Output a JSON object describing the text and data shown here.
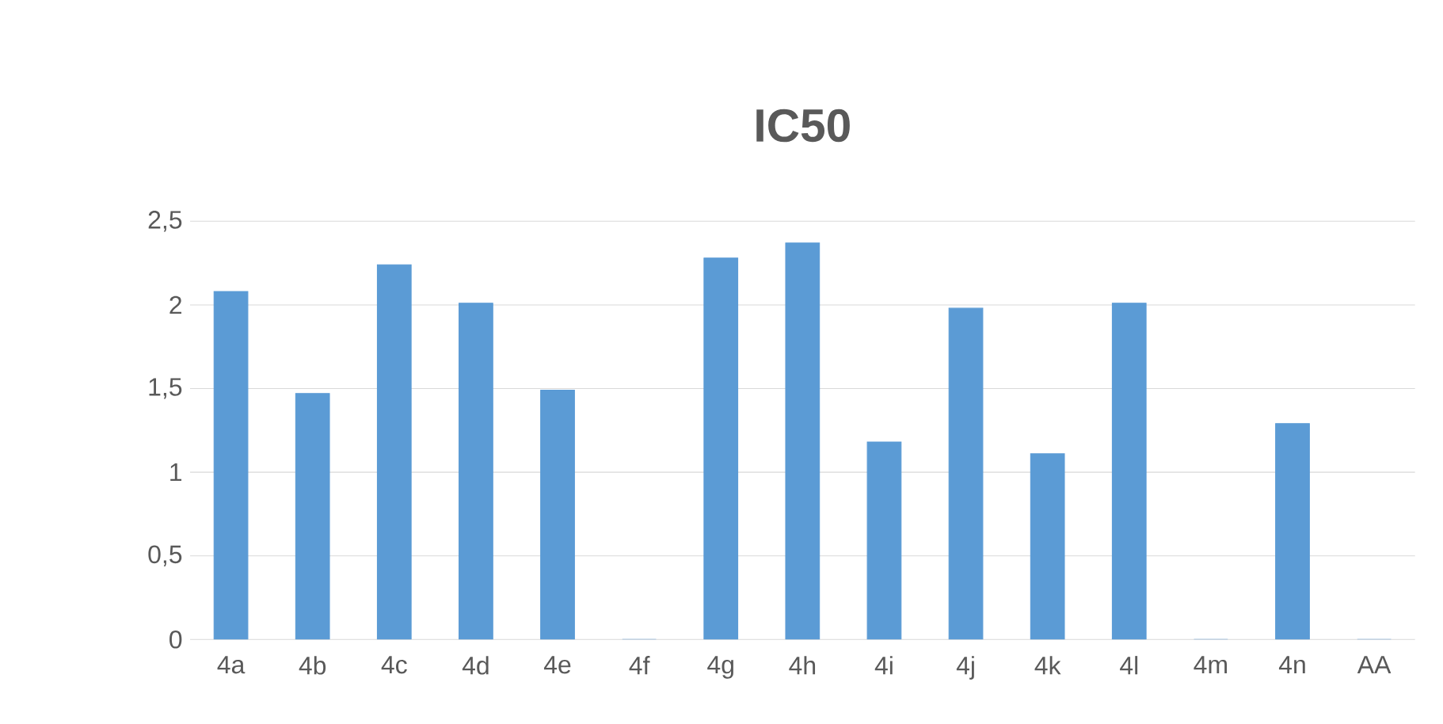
{
  "chart_data": {
    "type": "bar",
    "title": "IC50",
    "categories": [
      "4a",
      "4b",
      "4c",
      "4d",
      "4e",
      "4f",
      "4g",
      "4h",
      "4i",
      "4j",
      "4k",
      "4l",
      "4m",
      "4n",
      "AA"
    ],
    "values": [
      2.08,
      1.47,
      2.24,
      2.01,
      1.49,
      0,
      2.28,
      2.37,
      1.18,
      1.98,
      1.11,
      2.01,
      0,
      1.29,
      0
    ],
    "color": "#5b9bd5",
    "ylim": [
      0,
      2.5
    ],
    "yticks": [
      0,
      {
        "value": 0.5,
        "label": "0,5"
      },
      1,
      {
        "value": 1.5,
        "label": "1,5"
      },
      2,
      {
        "value": 2.5,
        "label": "2,5"
      }
    ],
    "grid": "y"
  }
}
